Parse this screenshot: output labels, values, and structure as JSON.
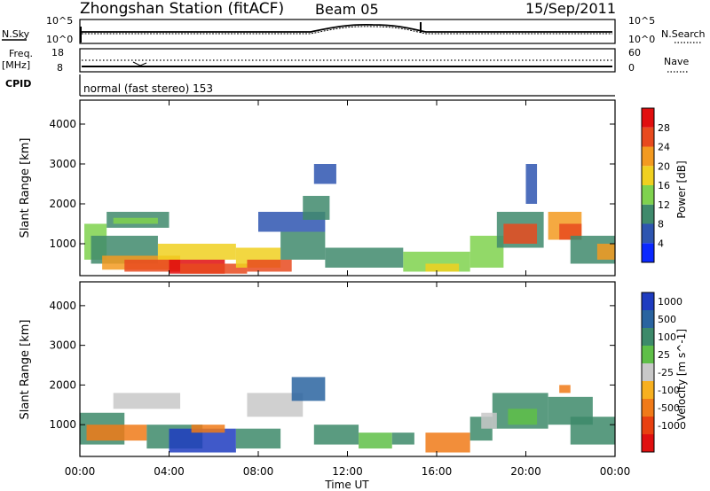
{
  "header": {
    "title": "Zhongshan Station (fitACF)",
    "beam": "Beam 05",
    "date": "15/Sep/2011"
  },
  "status_panels": {
    "nsky_label": "N.Sky",
    "nsearch_label": "N.Search",
    "freq_label_1": "Freq.",
    "freq_label_2": "[MHz]",
    "nave_label": "Nave",
    "cpid_label": "CPID",
    "cpid_text": "normal (fast stereo) 153",
    "left_ticks_top": [
      "10^5",
      "10^0"
    ],
    "right_ticks_top": [
      "10^5",
      "10^0"
    ],
    "left_ticks_freq": [
      "18",
      "8"
    ],
    "right_ticks_nave": [
      "60",
      "0"
    ]
  },
  "chart_data": [
    {
      "type": "heatmap",
      "name": "Power",
      "ylabel": "Slant Range [km]",
      "ylim": [
        200,
        4600
      ],
      "y_ticks": [
        "1000",
        "2000",
        "3000",
        "4000"
      ],
      "colorbar_label": "Power [dB]",
      "colorbar_ticks": [
        "4",
        "8",
        "12",
        "16",
        "20",
        "24",
        "28"
      ],
      "colors": [
        "#0a28ff",
        "#2e55b0",
        "#3f8a6c",
        "#7fd24e",
        "#f0d020",
        "#f39a20",
        "#e84a1e",
        "#e10e0e"
      ],
      "patches": [
        {
          "x": [
            0.2,
            1.2
          ],
          "y": [
            600,
            1500
          ],
          "c": 3
        },
        {
          "x": [
            0.5,
            3.5
          ],
          "y": [
            500,
            1200
          ],
          "c": 2
        },
        {
          "x": [
            1.0,
            4.5
          ],
          "y": [
            350,
            700
          ],
          "c": 5
        },
        {
          "x": [
            2.0,
            4.5
          ],
          "y": [
            300,
            600
          ],
          "c": 6
        },
        {
          "x": [
            4.0,
            6.5
          ],
          "y": [
            250,
            600
          ],
          "c": 7
        },
        {
          "x": [
            4.5,
            7.5
          ],
          "y": [
            250,
            500
          ],
          "c": 6
        },
        {
          "x": [
            3.5,
            7.0
          ],
          "y": [
            600,
            1000
          ],
          "c": 4
        },
        {
          "x": [
            1.2,
            4.0
          ],
          "y": [
            1400,
            1800
          ],
          "c": 2
        },
        {
          "x": [
            1.5,
            3.5
          ],
          "y": [
            1500,
            1650
          ],
          "c": 3
        },
        {
          "x": [
            7.0,
            9.0
          ],
          "y": [
            400,
            900
          ],
          "c": 4
        },
        {
          "x": [
            7.5,
            9.5
          ],
          "y": [
            300,
            600
          ],
          "c": 6
        },
        {
          "x": [
            8.0,
            11.0
          ],
          "y": [
            1300,
            1800
          ],
          "c": 1
        },
        {
          "x": [
            9.0,
            11.0
          ],
          "y": [
            600,
            1300
          ],
          "c": 2
        },
        {
          "x": [
            10.0,
            11.2
          ],
          "y": [
            1600,
            2200
          ],
          "c": 2
        },
        {
          "x": [
            11.0,
            14.5
          ],
          "y": [
            400,
            900
          ],
          "c": 2
        },
        {
          "x": [
            14.5,
            17.5
          ],
          "y": [
            300,
            800
          ],
          "c": 3
        },
        {
          "x": [
            15.5,
            17.0
          ],
          "y": [
            300,
            500
          ],
          "c": 4
        },
        {
          "x": [
            17.5,
            19.0
          ],
          "y": [
            400,
            1200
          ],
          "c": 3
        },
        {
          "x": [
            18.7,
            20.8
          ],
          "y": [
            900,
            1800
          ],
          "c": 2
        },
        {
          "x": [
            19.0,
            20.5
          ],
          "y": [
            1000,
            1500
          ],
          "c": 6
        },
        {
          "x": [
            21.0,
            22.5
          ],
          "y": [
            1100,
            1800
          ],
          "c": 5
        },
        {
          "x": [
            21.5,
            22.5
          ],
          "y": [
            1100,
            1500
          ],
          "c": 6
        },
        {
          "x": [
            22.0,
            24.0
          ],
          "y": [
            500,
            1200
          ],
          "c": 2
        },
        {
          "x": [
            23.2,
            24.0
          ],
          "y": [
            600,
            1000
          ],
          "c": 5
        },
        {
          "x": [
            20.0,
            20.5
          ],
          "y": [
            2000,
            3000
          ],
          "c": 1
        },
        {
          "x": [
            10.5,
            11.5
          ],
          "y": [
            2500,
            3000
          ],
          "c": 1
        }
      ]
    },
    {
      "type": "heatmap",
      "name": "Velocity",
      "ylabel": "Slant Range [km]",
      "xlabel": "Time UT",
      "ylim": [
        200,
        4600
      ],
      "y_ticks": [
        "1000",
        "2000",
        "3000",
        "4000"
      ],
      "colorbar_label": "Velocity [m s^-1]",
      "colorbar_ticks": [
        "1000",
        "500",
        "100",
        "25",
        "-25",
        "-100",
        "-500",
        "-1000"
      ],
      "colors": [
        "#1e3cc0",
        "#2a64a0",
        "#3d8a6a",
        "#5fbf48",
        "#c8c8c8",
        "#f7b020",
        "#f07a18",
        "#e84010",
        "#e01010"
      ],
      "patches": [
        {
          "x": [
            0.0,
            2.0
          ],
          "y": [
            500,
            1300
          ],
          "c": 2
        },
        {
          "x": [
            0.3,
            3.0
          ],
          "y": [
            600,
            1000
          ],
          "c": 6
        },
        {
          "x": [
            1.5,
            4.5
          ],
          "y": [
            1400,
            1800
          ],
          "c": 4
        },
        {
          "x": [
            3.0,
            5.5
          ],
          "y": [
            400,
            1000
          ],
          "c": 2
        },
        {
          "x": [
            4.0,
            7.0
          ],
          "y": [
            300,
            900
          ],
          "c": 0
        },
        {
          "x": [
            5.0,
            6.5
          ],
          "y": [
            800,
            1000
          ],
          "c": 6
        },
        {
          "x": [
            7.0,
            9.0
          ],
          "y": [
            400,
            900
          ],
          "c": 2
        },
        {
          "x": [
            7.5,
            10.0
          ],
          "y": [
            1200,
            1800
          ],
          "c": 4
        },
        {
          "x": [
            9.5,
            11.0
          ],
          "y": [
            1600,
            2200
          ],
          "c": 1
        },
        {
          "x": [
            10.5,
            12.5
          ],
          "y": [
            500,
            1000
          ],
          "c": 2
        },
        {
          "x": [
            12.5,
            14.0
          ],
          "y": [
            400,
            800
          ],
          "c": 3
        },
        {
          "x": [
            14.0,
            15.0
          ],
          "y": [
            500,
            800
          ],
          "c": 2
        },
        {
          "x": [
            15.5,
            17.5
          ],
          "y": [
            300,
            800
          ],
          "c": 6
        },
        {
          "x": [
            17.5,
            18.5
          ],
          "y": [
            600,
            1200
          ],
          "c": 2
        },
        {
          "x": [
            18.5,
            21.0
          ],
          "y": [
            900,
            1800
          ],
          "c": 2
        },
        {
          "x": [
            19.2,
            20.5
          ],
          "y": [
            1000,
            1400
          ],
          "c": 3
        },
        {
          "x": [
            21.0,
            23.0
          ],
          "y": [
            1000,
            1700
          ],
          "c": 2
        },
        {
          "x": [
            21.5,
            22.0
          ],
          "y": [
            1800,
            2000
          ],
          "c": 6
        },
        {
          "x": [
            22.0,
            24.0
          ],
          "y": [
            500,
            1200
          ],
          "c": 2
        },
        {
          "x": [
            18.0,
            18.7
          ],
          "y": [
            900,
            1300
          ],
          "c": 4
        }
      ]
    }
  ],
  "x_axis": {
    "xlim": [
      0,
      24
    ],
    "x_ticks": [
      "00:00",
      "04:00",
      "08:00",
      "12:00",
      "16:00",
      "20:00",
      "00:00"
    ],
    "xlabel": "Time UT"
  }
}
